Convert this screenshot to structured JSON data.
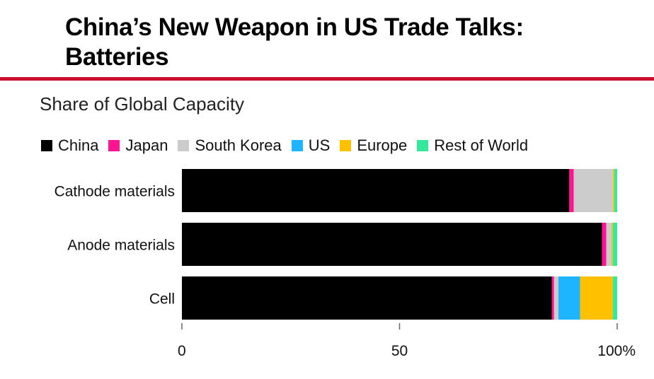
{
  "title": "China’s New Weapon in US Trade Talks: Batteries",
  "subtitle": "Share of Global Capacity",
  "chart_data": {
    "type": "bar",
    "orientation": "horizontal",
    "stacked": true,
    "categories": [
      "Cathode materials",
      "Anode materials",
      "Cell"
    ],
    "series": [
      {
        "name": "China",
        "color": "#000000",
        "values": [
          89,
          96.5,
          85
        ]
      },
      {
        "name": "Japan",
        "color": "#ff1493",
        "values": [
          1,
          1,
          0.5
        ]
      },
      {
        "name": "South Korea",
        "color": "#cccccc",
        "values": [
          9,
          1.2,
          1
        ]
      },
      {
        "name": "US",
        "color": "#1eb4ff",
        "values": [
          0,
          0,
          5
        ]
      },
      {
        "name": "Europe",
        "color": "#ffc000",
        "values": [
          0.3,
          0.3,
          7.5
        ]
      },
      {
        "name": "Rest of World",
        "color": "#35e89a",
        "values": [
          0.7,
          1,
          1
        ]
      }
    ],
    "xlim": [
      0,
      100
    ],
    "xticks": [
      {
        "value": 0,
        "label": "0"
      },
      {
        "value": 50,
        "label": "50"
      },
      {
        "value": 100,
        "label": "100%"
      }
    ],
    "legend_position": "top-left",
    "grid": false
  }
}
